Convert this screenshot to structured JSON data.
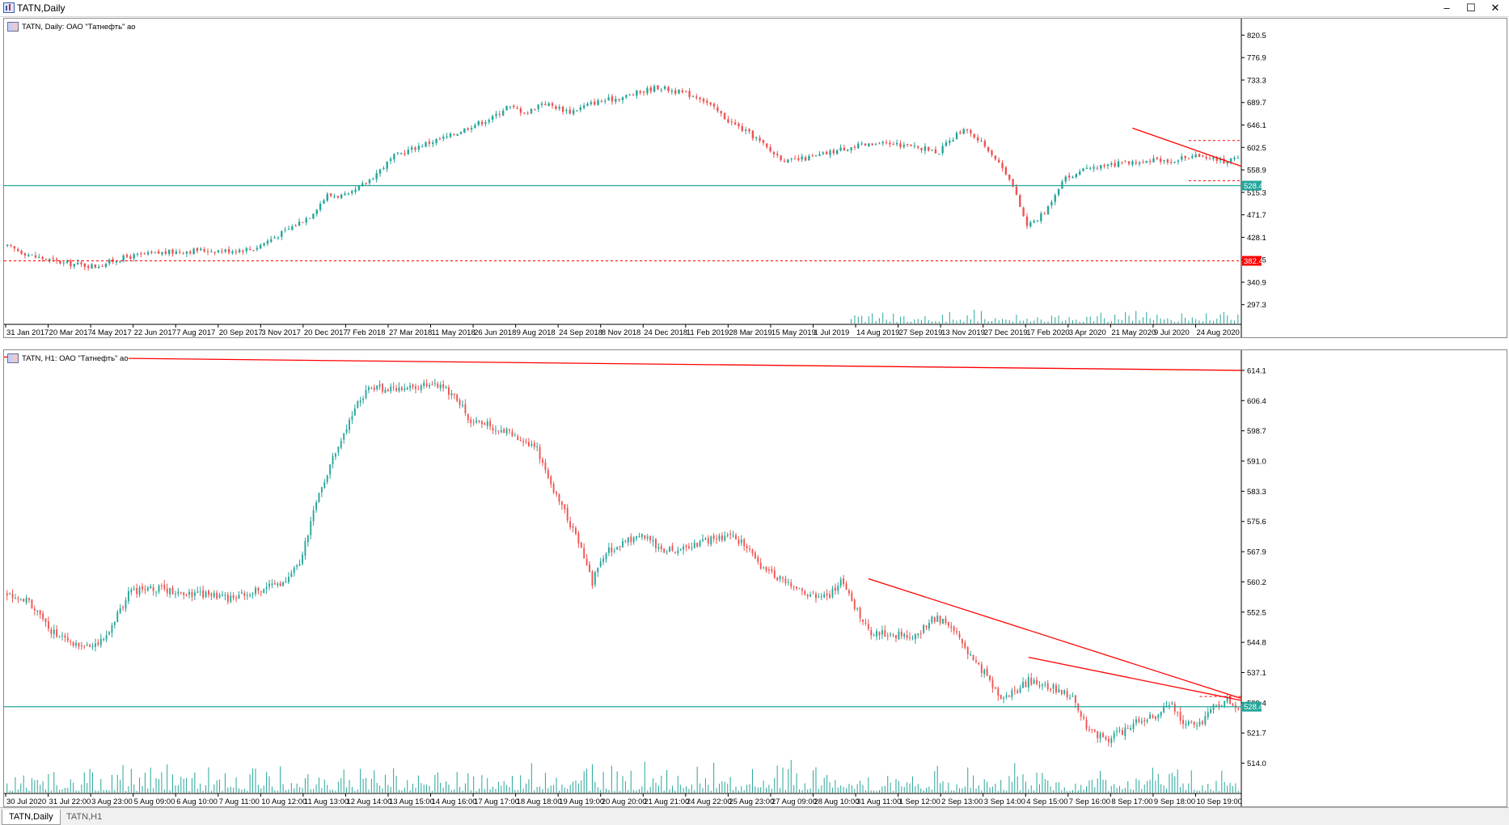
{
  "window": {
    "title": "TATN,Daily",
    "minimize_label": "–",
    "maximize_label": "☐",
    "close_label": "✕",
    "icon": "chart-window-icon"
  },
  "tabs": [
    {
      "label": "TATN,Daily",
      "active": true
    },
    {
      "label": "TATN,H1",
      "active": false
    }
  ],
  "colors": {
    "bull": "#26a69a",
    "bear": "#ef5350",
    "level_line": "#26a69a",
    "trend_line": "#ff0000",
    "volume": "#26a69a",
    "price_tag": "#26a69a",
    "low_tag": "#ff0000"
  },
  "chart_data": [
    {
      "type": "candlestick",
      "label": "TATN, Daily:  ОАО \"Татнефть\" ао",
      "y_ticks": [
        "820.5",
        "776.9",
        "733.3",
        "689.7",
        "646.1",
        "602.5",
        "558.9",
        "515.3",
        "471.7",
        "428.1",
        "384.5",
        "340.9",
        "297.3"
      ],
      "ylim": [
        278,
        840
      ],
      "x_ticks": [
        "31 Jan 2017",
        "20 Mar 2017",
        "4 May 2017",
        "22 Jun 2017",
        "7 Aug 2017",
        "20 Sep 2017",
        "3 Nov 2017",
        "20 Dec 2017",
        "7 Feb 2018",
        "27 Mar 2018",
        "11 May 2018",
        "26 Jun 2018",
        "9 Aug 2018",
        "24 Sep 2018",
        "8 Nov 2018",
        "24 Dec 2018",
        "11 Feb 2019",
        "28 Mar 2019",
        "15 May 2019",
        "1 Jul 2019",
        "14 Aug 2019",
        "27 Sep 2019",
        "13 Nov 2019",
        "27 Dec 2019",
        "17 Feb 2020",
        "3 Apr 2020",
        "21 May 2020",
        "9 Jul 2020",
        "24 Aug 2020"
      ],
      "close_path": [
        [
          0,
          410
        ],
        [
          8,
          390
        ],
        [
          16,
          378
        ],
        [
          25,
          372
        ],
        [
          34,
          390
        ],
        [
          44,
          398
        ],
        [
          54,
          403
        ],
        [
          62,
          402
        ],
        [
          70,
          406
        ],
        [
          79,
          440
        ],
        [
          86,
          470
        ],
        [
          91,
          510
        ],
        [
          97,
          508
        ],
        [
          103,
          540
        ],
        [
          110,
          585
        ],
        [
          118,
          608
        ],
        [
          126,
          625
        ],
        [
          132,
          645
        ],
        [
          138,
          660
        ],
        [
          142,
          682
        ],
        [
          148,
          670
        ],
        [
          152,
          690
        ],
        [
          160,
          672
        ],
        [
          167,
          690
        ],
        [
          175,
          700
        ],
        [
          185,
          720
        ],
        [
          197,
          700
        ],
        [
          205,
          655
        ],
        [
          213,
          620
        ],
        [
          217,
          595
        ],
        [
          222,
          575
        ],
        [
          230,
          585
        ],
        [
          240,
          605
        ],
        [
          252,
          610
        ],
        [
          265,
          595
        ],
        [
          272,
          640
        ],
        [
          279,
          600
        ],
        [
          285,
          545
        ],
        [
          290,
          450
        ],
        [
          295,
          475
        ],
        [
          300,
          540
        ],
        [
          305,
          555
        ],
        [
          311,
          565
        ],
        [
          320,
          575
        ],
        [
          331,
          578
        ],
        [
          340,
          588
        ],
        [
          346,
          575
        ],
        [
          350,
          585
        ]
      ],
      "current_price_tag": "528.4",
      "current_price": 528.4,
      "low_line_tag": "382.4",
      "low_line": 382.4,
      "volume_start_index": 240
    },
    {
      "type": "candlestick",
      "label": "TATN, H1:  ОАО \"Татнефть\" ао",
      "y_ticks": [
        "614.1",
        "606.4",
        "598.7",
        "591.0",
        "583.3",
        "575.6",
        "567.9",
        "560.2",
        "552.5",
        "544.8",
        "537.1",
        "529.4",
        "521.7",
        "514.0"
      ],
      "ylim": [
        510,
        618
      ],
      "x_ticks": [
        "30 Jul 2020",
        "31 Jul 22:00",
        "3 Aug 23:00",
        "5 Aug 09:00",
        "6 Aug 10:00",
        "7 Aug 11:00",
        "10 Aug 12:00",
        "11 Aug 13:00",
        "12 Aug 14:00",
        "13 Aug 15:00",
        "14 Aug 16:00",
        "17 Aug 17:00",
        "18 Aug 18:00",
        "19 Aug 19:00",
        "20 Aug 20:00",
        "21 Aug 21:00",
        "24 Aug 22:00",
        "25 Aug 23:00",
        "27 Aug 09:00",
        "28 Aug 10:00",
        "31 Aug 11:00",
        "1 Sep 12:00",
        "2 Sep 13:00",
        "3 Sep 14:00",
        "4 Sep 15:00",
        "7 Sep 16:00",
        "8 Sep 17:00",
        "9 Sep 18:00",
        "10 Sep 19:00"
      ],
      "close_path": [
        [
          0,
          557
        ],
        [
          8,
          555
        ],
        [
          15,
          548
        ],
        [
          22,
          545
        ],
        [
          30,
          543
        ],
        [
          37,
          548
        ],
        [
          44,
          557
        ],
        [
          50,
          559
        ],
        [
          60,
          558
        ],
        [
          70,
          557
        ],
        [
          80,
          556
        ],
        [
          90,
          558
        ],
        [
          100,
          560
        ],
        [
          106,
          565
        ],
        [
          111,
          578
        ],
        [
          117,
          590
        ],
        [
          123,
          600
        ],
        [
          128,
          607
        ],
        [
          133,
          610
        ],
        [
          140,
          609
        ],
        [
          148,
          610
        ],
        [
          155,
          611
        ],
        [
          162,
          608
        ],
        [
          168,
          601
        ],
        [
          175,
          600
        ],
        [
          182,
          598
        ],
        [
          188,
          596
        ],
        [
          192,
          594
        ],
        [
          197,
          585
        ],
        [
          202,
          578
        ],
        [
          207,
          570
        ],
        [
          212,
          560
        ],
        [
          216,
          567
        ],
        [
          222,
          570
        ],
        [
          230,
          572
        ],
        [
          238,
          568
        ],
        [
          246,
          569
        ],
        [
          255,
          571
        ],
        [
          262,
          572
        ],
        [
          267,
          570
        ],
        [
          273,
          564
        ],
        [
          280,
          561
        ],
        [
          287,
          558
        ],
        [
          293,
          556
        ],
        [
          298,
          557
        ],
        [
          302,
          560
        ],
        [
          308,
          553
        ],
        [
          313,
          547
        ],
        [
          320,
          547
        ],
        [
          328,
          546
        ],
        [
          336,
          551
        ],
        [
          341,
          550
        ],
        [
          347,
          543
        ],
        [
          354,
          537
        ],
        [
          360,
          531
        ],
        [
          365,
          532
        ],
        [
          370,
          535
        ],
        [
          375,
          534
        ],
        [
          380,
          533
        ],
        [
          386,
          531
        ],
        [
          392,
          522
        ],
        [
          398,
          520
        ],
        [
          404,
          522
        ],
        [
          410,
          525
        ],
        [
          416,
          526
        ],
        [
          422,
          529
        ],
        [
          426,
          524
        ],
        [
          432,
          524
        ],
        [
          437,
          528
        ],
        [
          442,
          530
        ],
        [
          446,
          528
        ]
      ],
      "current_price_tag": "528.4",
      "current_price": 528.4,
      "volume_start_index": 0
    }
  ]
}
